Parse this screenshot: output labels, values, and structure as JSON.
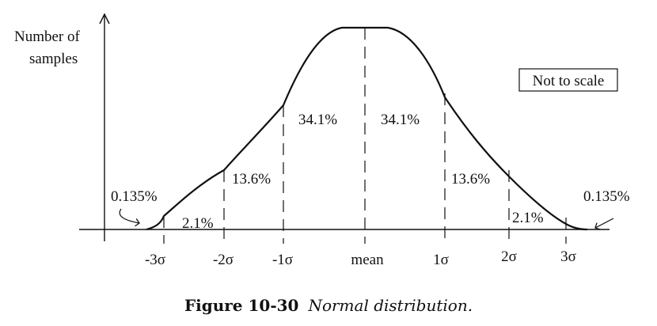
{
  "y_axis_label": [
    "Number of",
    "samples"
  ],
  "note": "Not to scale",
  "x_tick_labels": [
    "-3σ",
    "-2σ",
    "-1σ",
    "mean",
    "1σ",
    "2σ",
    "3σ"
  ],
  "band_labels": {
    "left_tail": "0.135%",
    "left_outer": "2.1%",
    "left_mid": "13.6%",
    "left_inner": "34.1%",
    "right_inner": "34.1%",
    "right_mid": "13.6%",
    "right_outer": "2.1%",
    "right_tail": "0.135%"
  },
  "caption": {
    "number": "Figure 10-30",
    "text": "Normal distribution."
  }
}
